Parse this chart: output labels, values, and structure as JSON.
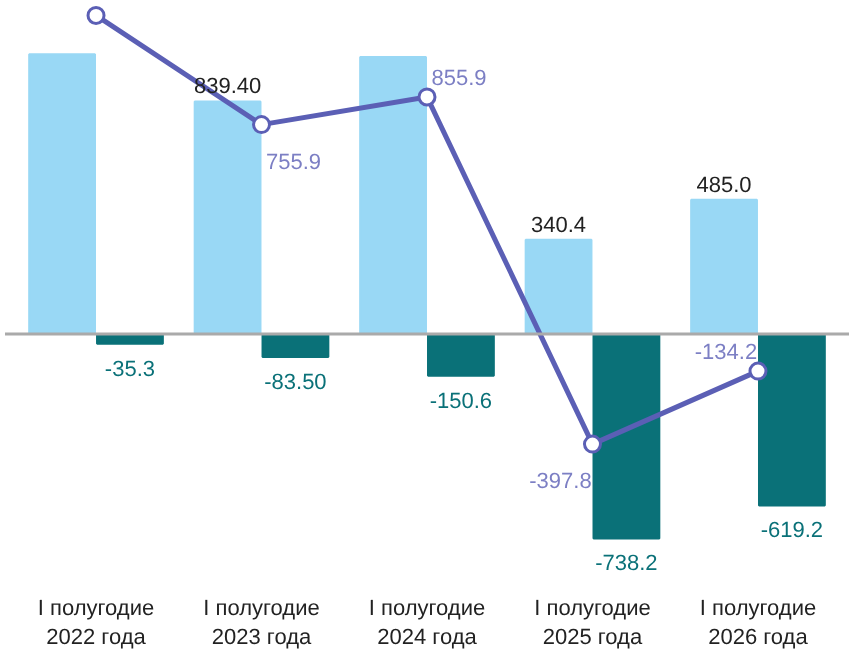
{
  "chart_data": {
    "type": "bar",
    "categories": [
      "I полугодие\n2022 года",
      "I полугодие\n2023 года",
      "I полугодие\n2024 года",
      "I полугодие\n2025 года",
      "I полугодие\n2026 года"
    ],
    "series": [
      {
        "color": "#99d8f5",
        "values": [
          1010,
          839.4,
          1000,
          340.4,
          485.0
        ],
        "value_labels": [
          null,
          "839.40",
          null,
          "340.4",
          "485.0"
        ]
      },
      {
        "color": "#0a7178",
        "values": [
          -35.3,
          -83.5,
          -150.6,
          -738.2,
          -619.2
        ],
        "value_labels": [
          "-35.3",
          "-83.50",
          "-150.6",
          "-738.2",
          "-619.2"
        ]
      },
      {
        "type": "line",
        "color": "#5b5fb5",
        "marker": "circle",
        "values": [
          1150,
          755.9,
          855.9,
          -397.8,
          -134.2
        ],
        "value_labels": [
          null,
          "755.9",
          "855.9",
          "-397.8",
          "-134.2"
        ]
      }
    ],
    "tick_labels": "x"
  }
}
